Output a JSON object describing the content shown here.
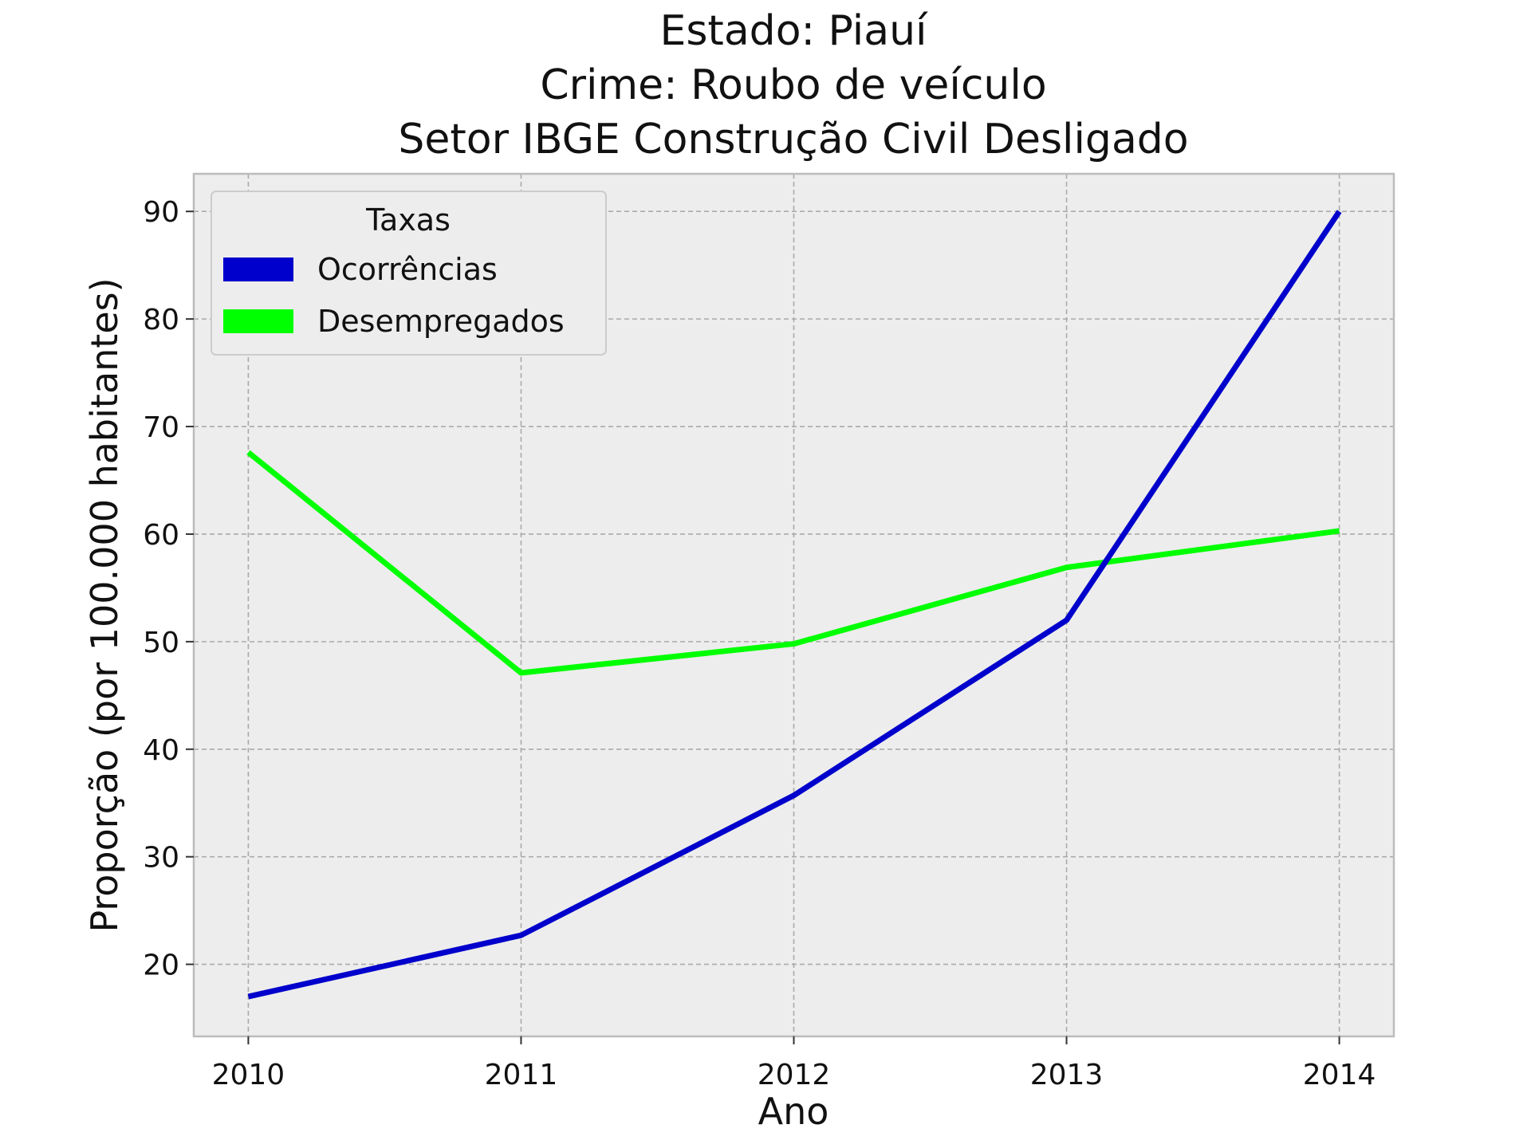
{
  "chart_data": {
    "type": "line",
    "title_lines": [
      "Estado: Piauí",
      "Crime: Roubo de veículo",
      "Setor IBGE  Construção Civil   Desligado"
    ],
    "xlabel": "Ano",
    "ylabel": "Proporção (por 100.000 habitantes)",
    "x": [
      2010,
      2011,
      2012,
      2013,
      2014
    ],
    "x_tick_labels": [
      "2010",
      "2011",
      "2012",
      "2013",
      "2014"
    ],
    "xlim": [
      2009.8,
      2014.2
    ],
    "ylim": [
      13.3,
      93.5
    ],
    "y_ticks": [
      20,
      30,
      40,
      50,
      60,
      70,
      80,
      90
    ],
    "y_tick_labels": [
      "20",
      "30",
      "40",
      "50",
      "60",
      "70",
      "80",
      "90"
    ],
    "grid": true,
    "legend": {
      "title": "Taxas",
      "position": "top-left"
    },
    "series": [
      {
        "name": "Ocorrências",
        "color": "#0000cc",
        "values": [
          17.0,
          22.7,
          35.7,
          52.0,
          90.0
        ]
      },
      {
        "name": "Desempregados",
        "color": "#00ff00",
        "values": [
          67.6,
          47.1,
          49.8,
          56.9,
          60.3
        ]
      }
    ],
    "colors": {
      "plot_background": "#ededed",
      "grid": "#aaaaaa",
      "frame": "#bcbcbc"
    }
  }
}
